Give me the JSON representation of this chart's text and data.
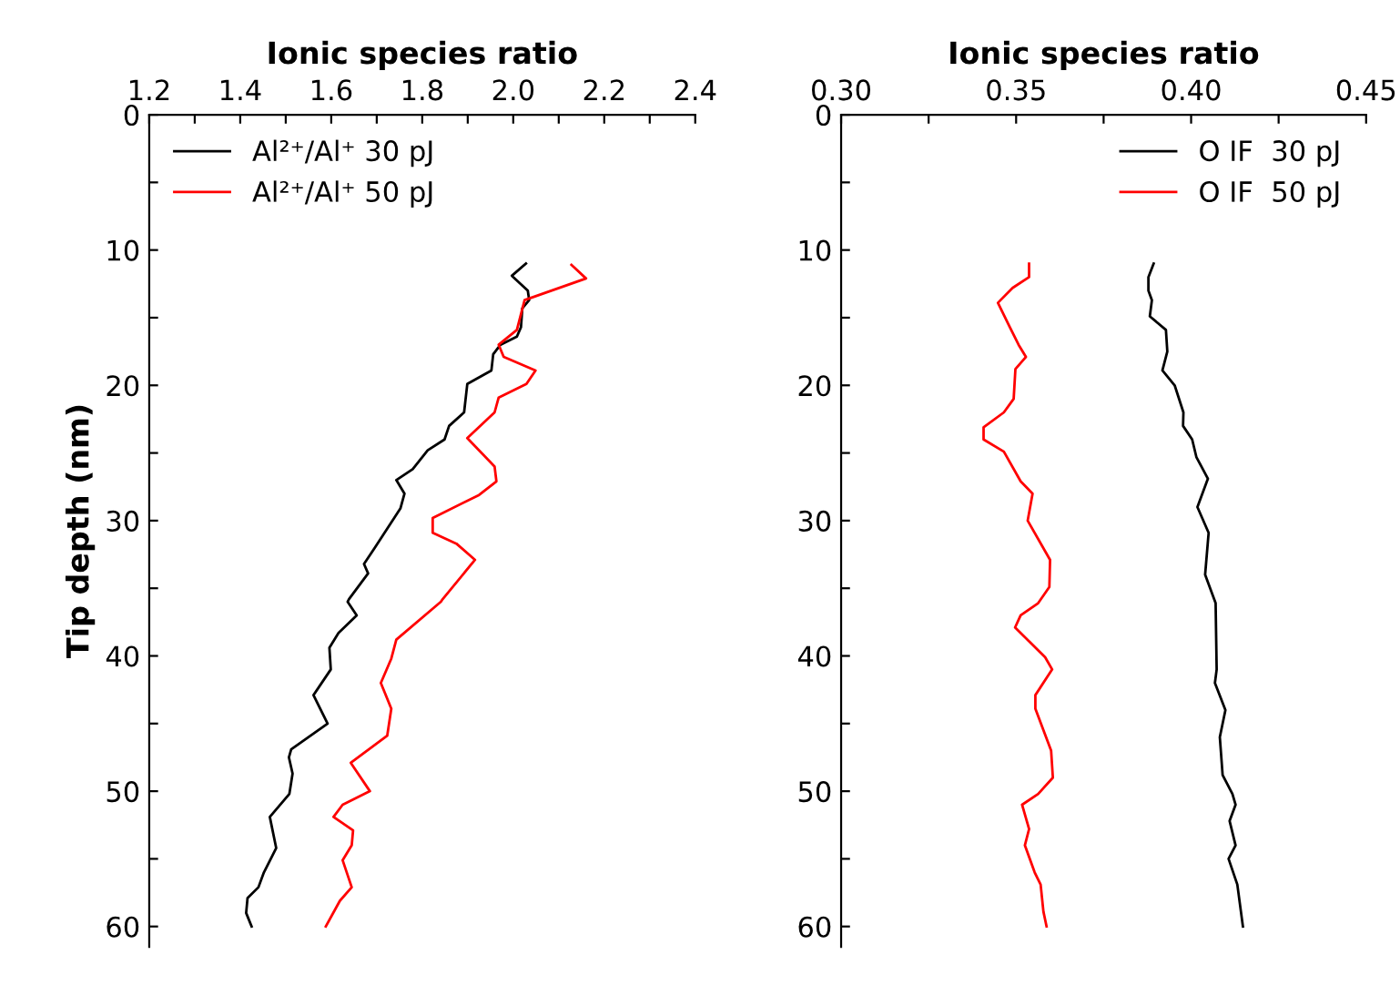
{
  "chart_data": [
    {
      "type": "line",
      "xlabel": "Ionic species ratio",
      "ylabel": "Tip depth (nm)",
      "xlim": [
        1.2,
        2.4
      ],
      "ylim": [
        61.5,
        0
      ],
      "xticks": [
        1.2,
        {
          "value": 1.3,
          "label": null
        },
        1.4,
        {
          "value": 1.5,
          "label": null
        },
        1.6,
        {
          "value": 1.7,
          "label": null
        },
        1.8,
        {
          "value": 1.9,
          "label": null
        },
        {
          "value": 2.0,
          "label": "2.0"
        },
        {
          "value": 2.1,
          "label": null
        },
        2.2,
        {
          "value": 2.3,
          "label": null
        },
        2.4
      ],
      "yticks": [
        0,
        {
          "value": 5,
          "label": null
        },
        10,
        {
          "value": 15,
          "label": null
        },
        20,
        {
          "value": 25,
          "label": null
        },
        30,
        {
          "value": 35,
          "label": null
        },
        40,
        {
          "value": 45,
          "label": null
        },
        50,
        {
          "value": 55,
          "label": null
        },
        60
      ],
      "legend": "top left",
      "grid": false,
      "series": [
        {
          "name": "Al²⁺/Al⁺ 30 pJ",
          "color": "#000000",
          "x": [
            2.028,
            1.997,
            2.032,
            2.035,
            2.02,
            2.017,
            2.008,
            1.972,
            1.956,
            1.952,
            1.899,
            1.892,
            1.859,
            1.849,
            1.812,
            1.779,
            1.743,
            1.761,
            1.752,
            1.696,
            1.672,
            1.681,
            1.639,
            1.636,
            1.656,
            1.616,
            1.596,
            1.599,
            1.561,
            1.592,
            1.512,
            1.507,
            1.515,
            1.508,
            1.465,
            1.479,
            1.452,
            1.44,
            1.416,
            1.413,
            1.425
          ],
          "values": [
            11.0,
            11.9,
            13.0,
            13.7,
            14.3,
            15.7,
            16.4,
            17.0,
            17.7,
            18.9,
            19.9,
            22.0,
            23.0,
            24.0,
            24.8,
            26.2,
            27.0,
            28.0,
            29.1,
            32.0,
            33.2,
            33.9,
            35.8,
            36.0,
            37.0,
            38.3,
            39.4,
            41.0,
            42.9,
            45.0,
            46.9,
            47.5,
            48.7,
            50.2,
            51.9,
            54.2,
            56.0,
            57.1,
            57.9,
            59.0,
            60.0
          ]
        },
        {
          "name": "Al²⁺/Al⁺ 50 pJ",
          "color": "#ff0000",
          "x": [
            2.128,
            2.16,
            2.025,
            2.008,
            1.968,
            1.979,
            2.049,
            2.029,
            1.968,
            1.959,
            1.899,
            1.959,
            1.963,
            1.925,
            1.823,
            1.823,
            1.875,
            1.916,
            1.845,
            1.841,
            1.743,
            1.732,
            1.709,
            1.732,
            1.723,
            1.643,
            1.685,
            1.625,
            1.605,
            1.648,
            1.645,
            1.625,
            1.645,
            1.619,
            1.588
          ],
          "values": [
            11.1,
            12.1,
            13.7,
            15.9,
            17.0,
            17.9,
            18.9,
            19.9,
            20.9,
            22.0,
            23.9,
            26.0,
            27.1,
            28.1,
            29.8,
            30.9,
            31.7,
            32.9,
            35.8,
            36.0,
            38.8,
            40.2,
            42.0,
            43.9,
            45.9,
            47.9,
            50.0,
            51.0,
            51.9,
            52.9,
            54.0,
            55.1,
            57.1,
            58.1,
            60.0
          ]
        }
      ]
    },
    {
      "type": "line",
      "xlabel": "Ionic species ratio",
      "xlim": [
        0.3,
        0.45
      ],
      "ylim": [
        61.5,
        0
      ],
      "xticks": [
        {
          "value": 0.3,
          "label": "0.30"
        },
        {
          "value": 0.325,
          "label": null
        },
        {
          "value": 0.35,
          "label": "0.35"
        },
        {
          "value": 0.375,
          "label": null
        },
        {
          "value": 0.4,
          "label": "0.40"
        },
        {
          "value": 0.425,
          "label": null
        },
        {
          "value": 0.45,
          "label": "0.45"
        }
      ],
      "yticks": [
        0,
        {
          "value": 5,
          "label": null
        },
        10,
        {
          "value": 15,
          "label": null
        },
        20,
        {
          "value": 25,
          "label": null
        },
        30,
        {
          "value": 35,
          "label": null
        },
        40,
        {
          "value": 45,
          "label": null
        },
        50,
        {
          "value": 55,
          "label": null
        },
        60
      ],
      "legend": "top right",
      "grid": false,
      "series": [
        {
          "name": "O IF  30 pJ",
          "color": "#000000",
          "x": [
            0.3893,
            0.3878,
            0.3878,
            0.3888,
            0.3882,
            0.3928,
            0.3932,
            0.3918,
            0.3953,
            0.3978,
            0.3977,
            0.4003,
            0.4015,
            0.4048,
            0.4018,
            0.405,
            0.404,
            0.407,
            0.4073,
            0.4068,
            0.4098,
            0.4082,
            0.409,
            0.4118,
            0.4127,
            0.411,
            0.4127,
            0.4107,
            0.4132,
            0.4148
          ],
          "values": [
            11.0,
            12.0,
            13.0,
            13.7,
            14.9,
            15.9,
            17.5,
            18.9,
            20.0,
            22.0,
            23.0,
            24.0,
            25.3,
            26.9,
            29.0,
            30.9,
            34.0,
            36.1,
            41.0,
            42.0,
            44.0,
            46.0,
            48.8,
            50.2,
            51.0,
            52.2,
            54.0,
            55.0,
            56.9,
            60.0
          ]
        },
        {
          "name": "O IF  50 pJ",
          "color": "#ff0000",
          "x": [
            0.3537,
            0.3537,
            0.349,
            0.3448,
            0.3482,
            0.3507,
            0.3528,
            0.3498,
            0.3493,
            0.3465,
            0.3407,
            0.3407,
            0.3465,
            0.3513,
            0.3547,
            0.3533,
            0.3597,
            0.3595,
            0.3563,
            0.3513,
            0.3497,
            0.3583,
            0.3603,
            0.3555,
            0.3555,
            0.36,
            0.3605,
            0.3563,
            0.3517,
            0.3537,
            0.3525,
            0.3553,
            0.357,
            0.3578,
            0.3587
          ],
          "values": [
            11.0,
            12.0,
            12.8,
            13.9,
            15.7,
            17.0,
            17.9,
            18.8,
            21.0,
            22.0,
            23.1,
            24.0,
            24.9,
            27.1,
            28.0,
            30.0,
            32.9,
            34.9,
            36.1,
            37.0,
            37.9,
            40.1,
            41.0,
            42.9,
            43.9,
            47.0,
            49.0,
            50.2,
            51.0,
            52.8,
            54.0,
            56.0,
            56.9,
            58.9,
            60.0
          ]
        }
      ]
    }
  ]
}
